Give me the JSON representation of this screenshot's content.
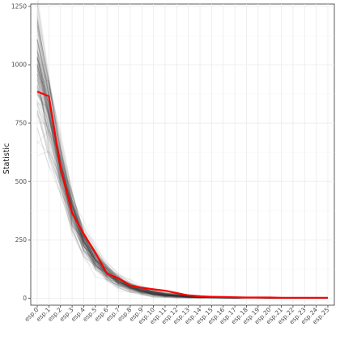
{
  "chart_data": {
    "type": "line",
    "title": "",
    "xlabel": "",
    "ylabel": "Statistic",
    "categories": [
      "esp.0",
      "esp.1",
      "esp.2",
      "esp.3",
      "esp.4",
      "esp.5",
      "esp.6",
      "esp.7",
      "esp.8",
      "esp.9",
      "esp.10",
      "esp.11",
      "esp.12",
      "esp.13",
      "esp.14",
      "esp.15",
      "esp.16",
      "esp.17",
      "esp.18",
      "esp.19",
      "esp.20",
      "esp.21",
      "esp.22",
      "esp.23",
      "esp.24",
      "esp.25"
    ],
    "ylim": [
      -30,
      1260
    ],
    "y_ticks": [
      0,
      250,
      500,
      750,
      1000,
      1250
    ],
    "grid": true,
    "legend": "none",
    "series": [
      {
        "role": "observed",
        "color": "#ff0000",
        "values": [
          885,
          865,
          560,
          365,
          275,
          195,
          105,
          85,
          55,
          45,
          38,
          32,
          22,
          12,
          8,
          6,
          5,
          4,
          3,
          3,
          3,
          2,
          2,
          2,
          2,
          2
        ]
      },
      {
        "role": "simulated",
        "color": "#333333",
        "opacity": 0.09,
        "mean_values": [
          980,
          790,
          560,
          370,
          245,
          165,
          110,
          72,
          48,
          32,
          21,
          14,
          10,
          7,
          5,
          4,
          3,
          2,
          2,
          2,
          1,
          1,
          1,
          1,
          1,
          1
        ],
        "spread_values": [
          160,
          110,
          75,
          52,
          38,
          28,
          22,
          17,
          13,
          10,
          8,
          6,
          5,
          4,
          3,
          2,
          2,
          2,
          1,
          1,
          1,
          1,
          1,
          1,
          1,
          1
        ],
        "count": 120
      }
    ]
  }
}
